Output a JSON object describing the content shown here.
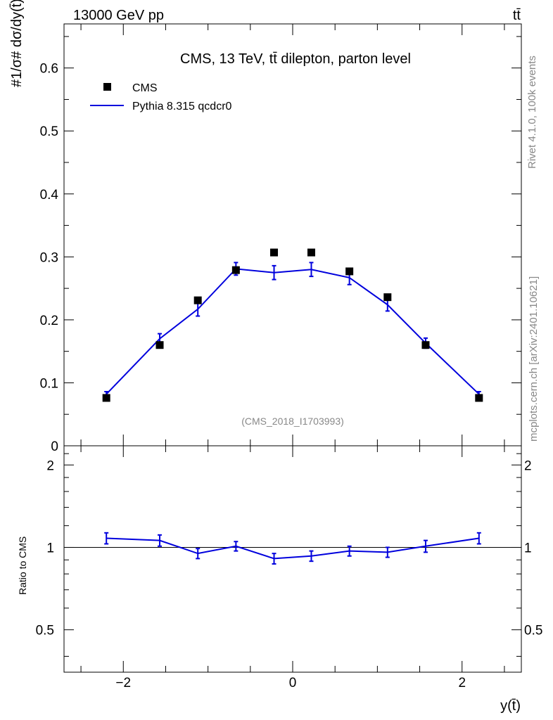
{
  "header": {
    "energy_label": "13000 GeV pp",
    "process_label": "tt̄",
    "side_label_top": "Rivet 4.1.0,  100k events",
    "side_label_bottom": "mcplots.cern.ch [arXiv:2401.10621]"
  },
  "colors": {
    "mc": "#0000dd",
    "data": "#000000",
    "watermark": "#888888"
  },
  "chart_data": [
    {
      "type": "scatter",
      "title": "CMS, 13 TeV, tt̄ dilepton, parton level",
      "watermark": "(CMS_2018_I1703993)",
      "ylabel": "#1/σ# dσ/dy(t̄)",
      "ylim": [
        0,
        0.67
      ],
      "xlim": [
        -2.7,
        2.7
      ],
      "yticks": [
        0,
        0.1,
        0.2,
        0.3,
        0.4,
        0.5,
        0.6
      ],
      "ytick_labels": [
        "0",
        "0.1",
        "0.2",
        "0.3",
        "0.4",
        "0.5",
        "0.6"
      ],
      "x": [
        -2.2,
        -1.57,
        -1.12,
        -0.67,
        -0.22,
        0.22,
        0.67,
        1.12,
        1.57,
        2.2
      ],
      "series": [
        {
          "name": "CMS",
          "style": "markers",
          "values": [
            0.076,
            0.16,
            0.231,
            0.279,
            0.307,
            0.307,
            0.277,
            0.236,
            0.16,
            0.076
          ]
        },
        {
          "name": "Pythia 8.315 qcdcr0",
          "style": "line",
          "values": [
            0.082,
            0.17,
            0.217,
            0.281,
            0.275,
            0.28,
            0.267,
            0.224,
            0.163,
            0.082
          ],
          "errors": [
            0.004,
            0.008,
            0.011,
            0.01,
            0.011,
            0.011,
            0.011,
            0.01,
            0.008,
            0.004
          ]
        }
      ],
      "legend": [
        "CMS",
        "Pythia 8.315 qcdcr0"
      ],
      "legend_position": "top-left"
    },
    {
      "type": "line",
      "ylabel": "Ratio to CMS",
      "xlabel": "y(t̄)",
      "ylim": [
        0.35,
        2.35
      ],
      "xlim": [
        -2.7,
        2.7
      ],
      "yticks": [
        0.5,
        1,
        2
      ],
      "ytick_labels": [
        "0.5",
        "1",
        "2"
      ],
      "xticks": [
        -2,
        0,
        2
      ],
      "xtick_labels": [
        "−2",
        "0",
        "2"
      ],
      "x": [
        -2.2,
        -1.57,
        -1.12,
        -0.67,
        -0.22,
        0.22,
        0.67,
        1.12,
        1.57,
        2.2
      ],
      "series": [
        {
          "name": "Pythia 8.315 qcdcr0 / CMS",
          "values": [
            1.08,
            1.06,
            0.95,
            1.01,
            0.91,
            0.93,
            0.97,
            0.96,
            1.01,
            1.08
          ],
          "errors": [
            0.05,
            0.05,
            0.04,
            0.04,
            0.04,
            0.04,
            0.04,
            0.04,
            0.05,
            0.05
          ]
        }
      ]
    }
  ]
}
